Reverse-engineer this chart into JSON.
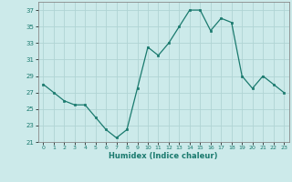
{
  "x": [
    0,
    1,
    2,
    3,
    4,
    5,
    6,
    7,
    8,
    9,
    10,
    11,
    12,
    13,
    14,
    15,
    16,
    17,
    18,
    19,
    20,
    21,
    22,
    23
  ],
  "y": [
    28,
    27,
    26,
    25.5,
    25.5,
    24,
    22.5,
    21.5,
    22.5,
    27.5,
    32.5,
    31.5,
    33,
    35,
    37,
    37,
    34.5,
    36,
    35.5,
    29,
    27.5,
    29,
    28,
    27
  ],
  "line_color": "#1a7a6e",
  "marker_color": "#1a7a6e",
  "bg_color": "#cceaea",
  "grid_color": "#b0d4d4",
  "xlabel": "Humidex (Indice chaleur)",
  "ylim": [
    21,
    38
  ],
  "xlim": [
    -0.5,
    23.5
  ],
  "yticks": [
    21,
    23,
    25,
    27,
    29,
    31,
    33,
    35,
    37
  ],
  "xticks": [
    0,
    1,
    2,
    3,
    4,
    5,
    6,
    7,
    8,
    9,
    10,
    11,
    12,
    13,
    14,
    15,
    16,
    17,
    18,
    19,
    20,
    21,
    22,
    23
  ]
}
